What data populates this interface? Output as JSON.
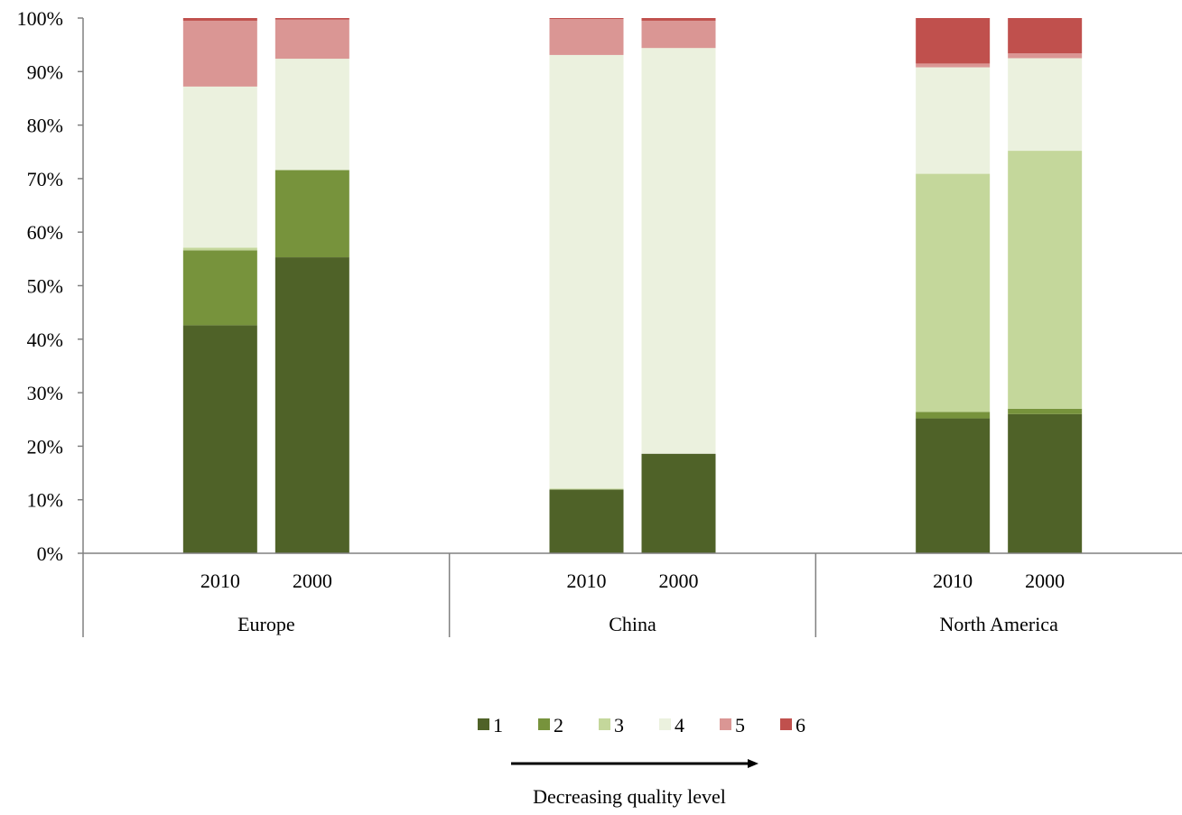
{
  "chart_data": {
    "type": "bar",
    "stacked": true,
    "percent": true,
    "y_ticks": [
      "0%",
      "10%",
      "20%",
      "30%",
      "40%",
      "50%",
      "60%",
      "70%",
      "80%",
      "90%",
      "100%"
    ],
    "ylim": [
      0,
      100
    ],
    "groups": [
      {
        "name": "Europe",
        "bars": [
          {
            "label": "2010",
            "values": [
              42.6,
              14.0,
              0.5,
              30.1,
              12.3,
              0.5
            ]
          },
          {
            "label": "2000",
            "values": [
              55.3,
              16.3,
              0.0,
              20.8,
              7.3,
              0.3
            ]
          }
        ]
      },
      {
        "name": "China",
        "bars": [
          {
            "label": "2010",
            "values": [
              11.9,
              0.0,
              0.2,
              81.0,
              6.7,
              0.2
            ]
          },
          {
            "label": "2000",
            "values": [
              18.6,
              0.0,
              0.0,
              75.8,
              5.1,
              0.5
            ]
          }
        ]
      },
      {
        "name": "North America",
        "bars": [
          {
            "label": "2010",
            "values": [
              25.2,
              1.2,
              44.5,
              19.9,
              0.7,
              8.5
            ]
          },
          {
            "label": "2000",
            "values": [
              26.0,
              1.0,
              48.2,
              17.3,
              0.9,
              6.6
            ]
          }
        ]
      }
    ],
    "series": [
      {
        "name": "1",
        "color": "#4f6228"
      },
      {
        "name": "2",
        "color": "#77933c"
      },
      {
        "name": "3",
        "color": "#c4d79b"
      },
      {
        "name": "4",
        "color": "#ebf1de"
      },
      {
        "name": "5",
        "color": "#da9694"
      },
      {
        "name": "6",
        "color": "#c0504d"
      }
    ],
    "legend_position": "bottom",
    "grid": false,
    "annotation": "Decreasing quality level"
  }
}
